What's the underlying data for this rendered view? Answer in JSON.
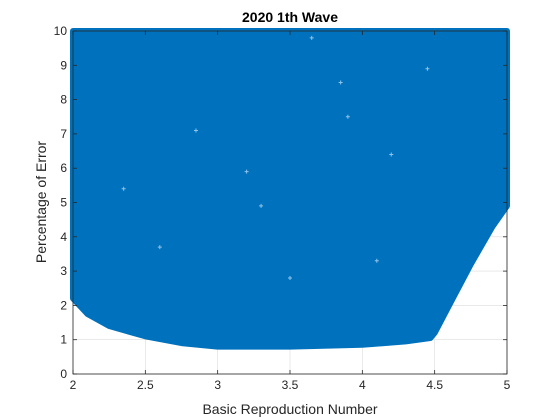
{
  "chart_data": {
    "type": "scatter",
    "title": "2020 1th Wave",
    "xlabel": "Basic Reproduction Number",
    "ylabel": "Percentage of Error",
    "xlim": [
      2,
      5
    ],
    "ylim": [
      0,
      10
    ],
    "xticks": [
      2,
      2.5,
      3,
      3.5,
      4,
      4.5,
      5
    ],
    "xtick_labels": [
      "2",
      "2.5",
      "3",
      "3.5",
      "4",
      "4.5",
      "5"
    ],
    "yticks": [
      0,
      1,
      2,
      3,
      4,
      5,
      6,
      7,
      8,
      9,
      10
    ],
    "ytick_labels": [
      "0",
      "1",
      "2",
      "3",
      "4",
      "5",
      "6",
      "7",
      "8",
      "9",
      "10"
    ],
    "grid": true,
    "box": true,
    "marker": "*",
    "color": "#0072BD",
    "series": [
      {
        "region_boundary": {
          "lower_edge": [
            {
              "x": 2.0,
              "y": 2.2
            },
            {
              "x": 2.1,
              "y": 1.75
            },
            {
              "x": 2.25,
              "y": 1.4
            },
            {
              "x": 2.5,
              "y": 1.1
            },
            {
              "x": 2.75,
              "y": 0.9
            },
            {
              "x": 3.0,
              "y": 0.8
            },
            {
              "x": 3.5,
              "y": 0.8
            },
            {
              "x": 4.0,
              "y": 0.85
            },
            {
              "x": 4.3,
              "y": 0.95
            },
            {
              "x": 4.47,
              "y": 1.05
            },
            {
              "x": 4.5,
              "y": 1.2
            },
            {
              "x": 4.6,
              "y": 2.0
            },
            {
              "x": 4.75,
              "y": 3.2
            },
            {
              "x": 4.9,
              "y": 4.3
            },
            {
              "x": 5.0,
              "y": 4.9
            }
          ],
          "upper_edge": [
            {
              "x": 5.0,
              "y": 10.0
            },
            {
              "x": 2.0,
              "y": 10.0
            }
          ]
        },
        "gaps": [
          {
            "x": 3.65,
            "y": 9.8
          },
          {
            "x": 3.85,
            "y": 8.5
          },
          {
            "x": 3.9,
            "y": 7.5
          },
          {
            "x": 4.2,
            "y": 6.4
          },
          {
            "x": 2.35,
            "y": 5.4
          },
          {
            "x": 3.3,
            "y": 4.9
          },
          {
            "x": 2.85,
            "y": 7.1
          },
          {
            "x": 4.1,
            "y": 3.3
          },
          {
            "x": 3.2,
            "y": 5.9
          },
          {
            "x": 2.6,
            "y": 3.7
          },
          {
            "x": 4.45,
            "y": 8.9
          },
          {
            "x": 3.5,
            "y": 2.8
          }
        ]
      }
    ]
  }
}
